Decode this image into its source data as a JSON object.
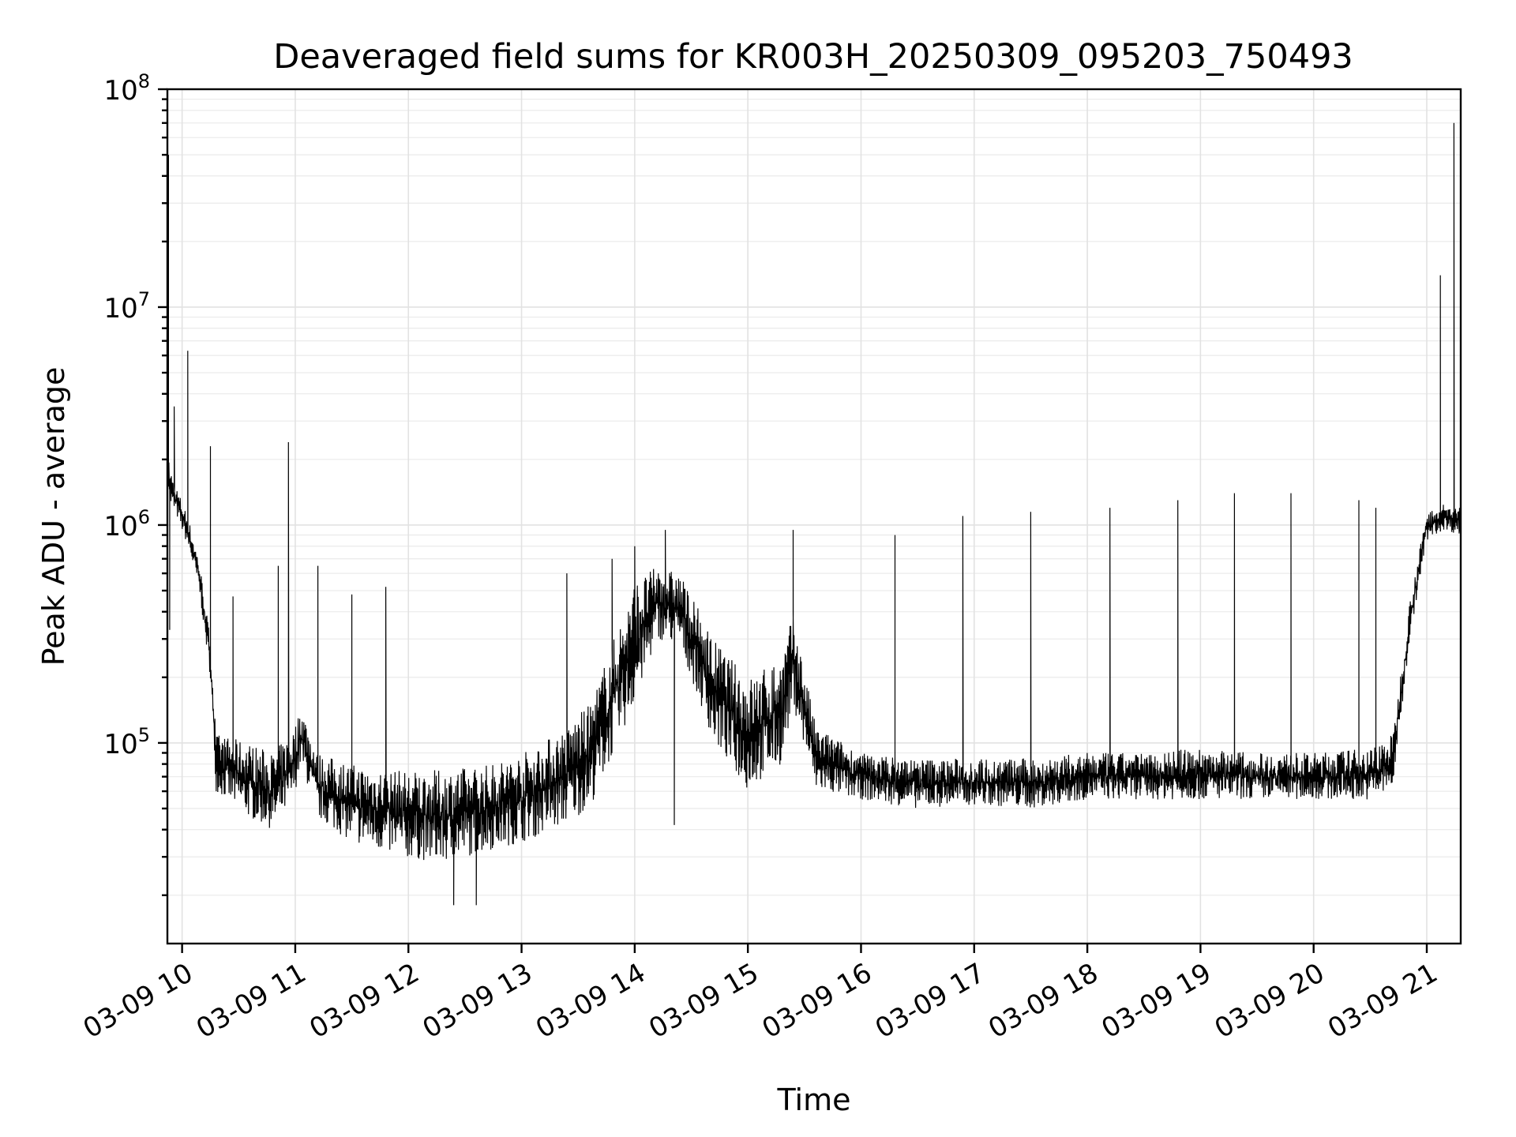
{
  "chart_data": {
    "type": "line",
    "title": "Deaveraged field sums for KR003H_20250309_095203_750493",
    "xlabel": "Time",
    "ylabel": "Peak ADU - average",
    "yscale": "log",
    "xlim": [
      9.87,
      21.3
    ],
    "ylim": [
      12000,
      100000000
    ],
    "grid": true,
    "x_ticks": [
      {
        "value": 10,
        "label": "03-09 10"
      },
      {
        "value": 11,
        "label": "03-09 11"
      },
      {
        "value": 12,
        "label": "03-09 12"
      },
      {
        "value": 13,
        "label": "03-09 13"
      },
      {
        "value": 14,
        "label": "03-09 14"
      },
      {
        "value": 15,
        "label": "03-09 15"
      },
      {
        "value": 16,
        "label": "03-09 16"
      },
      {
        "value": 17,
        "label": "03-09 17"
      },
      {
        "value": 18,
        "label": "03-09 18"
      },
      {
        "value": 19,
        "label": "03-09 19"
      },
      {
        "value": 20,
        "label": "03-09 20"
      },
      {
        "value": 21,
        "label": "03-09 21"
      }
    ],
    "y_ticks": [
      {
        "value": 100000,
        "base": "10",
        "exp": "5"
      },
      {
        "value": 1000000,
        "base": "10",
        "exp": "6"
      },
      {
        "value": 10000000,
        "base": "10",
        "exp": "7"
      },
      {
        "value": 100000000,
        "base": "10",
        "exp": "8"
      }
    ],
    "series": [
      {
        "name": "Peak ADU - average",
        "color": "#000000",
        "envelope": {
          "x": [
            9.88,
            9.9,
            9.95,
            10.05,
            10.15,
            10.25,
            10.3,
            10.6,
            10.8,
            10.95,
            11.0,
            11.05,
            11.2,
            11.5,
            11.9,
            12.3,
            12.7,
            13.0,
            13.3,
            13.6,
            14.0,
            14.2,
            14.4,
            14.7,
            15.0,
            15.3,
            15.4,
            15.6,
            16.0,
            16.5,
            17.0,
            17.5,
            18.0,
            18.5,
            19.0,
            19.5,
            20.0,
            20.5,
            20.7,
            20.85,
            21.0,
            21.15,
            21.3
          ],
          "low": [
            1500000,
            1200000,
            1100000,
            800000,
            500000,
            200000,
            60000,
            45000,
            40000,
            50000,
            60000,
            80000,
            45000,
            35000,
            30000,
            28000,
            32000,
            35000,
            40000,
            50000,
            150000,
            300000,
            280000,
            100000,
            60000,
            80000,
            150000,
            60000,
            55000,
            50000,
            52000,
            50000,
            55000,
            55000,
            55000,
            55000,
            55000,
            55000,
            60000,
            300000,
            850000,
            950000,
            900000
          ],
          "high": [
            2000000,
            1800000,
            1500000,
            1100000,
            700000,
            300000,
            110000,
            100000,
            90000,
            110000,
            120000,
            150000,
            90000,
            80000,
            75000,
            75000,
            80000,
            90000,
            110000,
            150000,
            550000,
            650000,
            600000,
            300000,
            200000,
            250000,
            400000,
            120000,
            90000,
            85000,
            85000,
            85000,
            90000,
            90000,
            95000,
            90000,
            90000,
            95000,
            110000,
            450000,
            1150000,
            1250000,
            1200000
          ]
        },
        "spikes": [
          {
            "x": 9.88,
            "value": 50000000
          },
          {
            "x": 9.89,
            "value": 330000
          },
          {
            "x": 9.93,
            "value": 3500000
          },
          {
            "x": 10.05,
            "value": 6300000
          },
          {
            "x": 10.25,
            "value": 2300000
          },
          {
            "x": 10.45,
            "value": 470000
          },
          {
            "x": 10.85,
            "value": 650000
          },
          {
            "x": 10.94,
            "value": 2400000
          },
          {
            "x": 11.2,
            "value": 650000
          },
          {
            "x": 11.5,
            "value": 480000
          },
          {
            "x": 11.8,
            "value": 520000
          },
          {
            "x": 12.4,
            "value": 18000
          },
          {
            "x": 12.6,
            "value": 18000
          },
          {
            "x": 13.4,
            "value": 600000
          },
          {
            "x": 13.8,
            "value": 700000
          },
          {
            "x": 14.0,
            "value": 800000
          },
          {
            "x": 14.27,
            "value": 950000
          },
          {
            "x": 14.35,
            "value": 42000
          },
          {
            "x": 15.4,
            "value": 950000
          },
          {
            "x": 16.3,
            "value": 900000
          },
          {
            "x": 16.9,
            "value": 1100000
          },
          {
            "x": 17.5,
            "value": 1150000
          },
          {
            "x": 18.2,
            "value": 1200000
          },
          {
            "x": 18.8,
            "value": 1300000
          },
          {
            "x": 19.3,
            "value": 1400000
          },
          {
            "x": 19.8,
            "value": 1400000
          },
          {
            "x": 20.4,
            "value": 1300000
          },
          {
            "x": 20.55,
            "value": 1200000
          },
          {
            "x": 21.12,
            "value": 14000000
          },
          {
            "x": 21.24,
            "value": 70000000
          }
        ]
      }
    ]
  }
}
